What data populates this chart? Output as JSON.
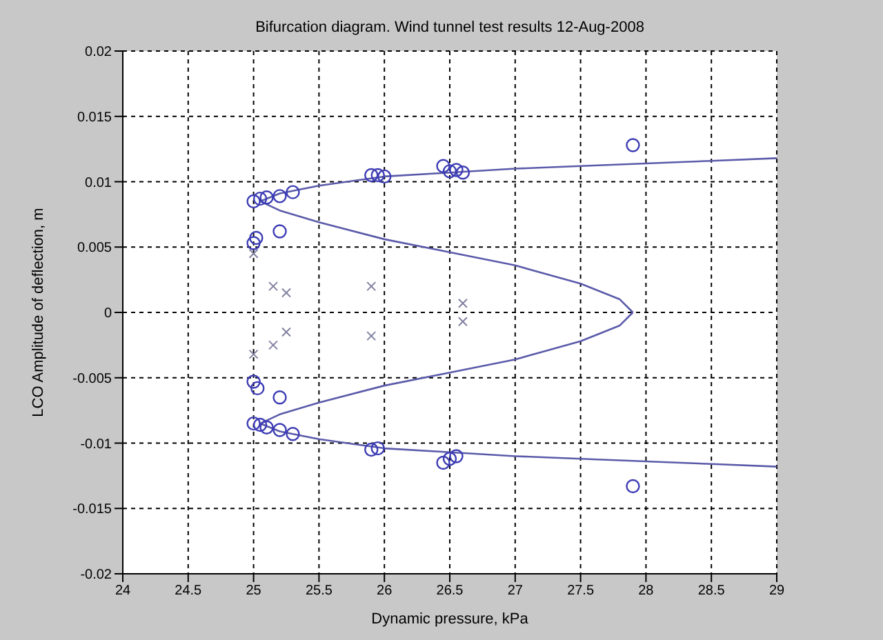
{
  "chart_data": {
    "type": "scatter",
    "title": "Bifurcation diagram. Wind tunnel test results   12-Aug-2008",
    "xlabel": "Dynamic pressure, kPa",
    "ylabel": "LCO Amplitude of deflection, m",
    "xlim": [
      24,
      29
    ],
    "xticks": [
      24,
      24.5,
      25,
      25.5,
      26,
      26.5,
      27,
      27.5,
      28,
      28.5,
      29
    ],
    "ylim": [
      -0.02,
      0.02
    ],
    "yticks": [
      -0.02,
      -0.015,
      -0.01,
      -0.005,
      0,
      0.005,
      0.01,
      0.015,
      0.02
    ],
    "grid": true,
    "series": [
      {
        "type": "line",
        "marker": "none",
        "color": "#5a5aaa",
        "x": [
          29,
          28.5,
          28,
          27.5,
          27,
          26.5,
          26,
          25.5,
          25.2,
          25.05,
          25.2,
          25.5,
          26,
          26.5,
          27,
          27.5,
          27.8,
          27.9
        ],
        "values": [
          0.0118,
          0.0116,
          0.0114,
          0.0112,
          0.011,
          0.0107,
          0.0104,
          0.0097,
          0.0091,
          0.0085,
          0.0078,
          0.0069,
          0.0056,
          0.0046,
          0.0036,
          0.0022,
          0.001,
          0
        ]
      },
      {
        "type": "line",
        "marker": "none",
        "color": "#5a5aaa",
        "x": [
          29,
          28.5,
          28,
          27.5,
          27,
          26.5,
          26,
          25.5,
          25.2,
          25.05,
          25.2,
          25.5,
          26,
          26.5,
          27,
          27.5,
          27.8,
          27.9
        ],
        "values": [
          -0.0118,
          -0.0116,
          -0.0114,
          -0.0112,
          -0.011,
          -0.0107,
          -0.0104,
          -0.0097,
          -0.0091,
          -0.0085,
          -0.0078,
          -0.0069,
          -0.0056,
          -0.0046,
          -0.0036,
          -0.0022,
          -0.001,
          0
        ]
      },
      {
        "marker": "circle",
        "color": "#3c3cb4",
        "x": [
          25,
          25.05,
          25.1,
          25.2,
          25.3,
          25.9,
          25.95,
          26,
          26.45,
          26.5,
          26.55,
          26.6,
          27.9,
          25,
          25.02,
          25.2,
          25,
          25.03,
          25.2,
          25,
          25.05,
          25.1,
          25.2,
          25.3,
          25.9,
          25.95,
          26.45,
          26.5,
          26.55,
          27.9
        ],
        "values": [
          0.0085,
          0.0087,
          0.0088,
          0.0089,
          0.0092,
          0.0105,
          0.0105,
          0.0104,
          0.0112,
          0.0108,
          0.0109,
          0.0107,
          0.0128,
          0.0053,
          0.0057,
          0.0062,
          -0.0053,
          -0.0058,
          -0.0065,
          -0.0085,
          -0.0086,
          -0.0088,
          -0.009,
          -0.0093,
          -0.0105,
          -0.0104,
          -0.0115,
          -0.0112,
          -0.011,
          -0.0133
        ]
      },
      {
        "marker": "cross",
        "color": "#8080a0",
        "x": [
          25,
          25.15,
          25.25,
          25.9,
          25.9,
          25.25,
          25.15,
          25,
          26.6,
          26.6
        ],
        "values": [
          0.0045,
          0.002,
          0.0015,
          0.002,
          -0.0018,
          -0.0015,
          -0.0025,
          -0.0032,
          0.0007,
          -0.0007
        ]
      }
    ]
  }
}
